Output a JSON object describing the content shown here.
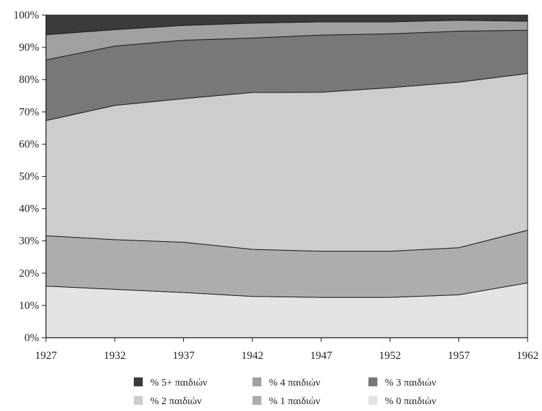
{
  "chart_data": {
    "type": "area",
    "stacked": true,
    "normalized_percent": true,
    "x": [
      1927,
      1932,
      1937,
      1942,
      1947,
      1952,
      1957,
      1962
    ],
    "x_tick_labels": [
      "1927",
      "1932",
      "1937",
      "1942",
      "1947",
      "1952",
      "1957",
      "1962"
    ],
    "y_tick_labels": [
      "0%",
      "10%",
      "20%",
      "30%",
      "40%",
      "50%",
      "60%",
      "70%",
      "80%",
      "90%",
      "100%"
    ],
    "ylim": [
      0,
      100
    ],
    "grid": false,
    "legend_position": "bottom",
    "series": [
      {
        "name": "% 0 παιδιών",
        "color": "#e4e4e4",
        "values": [
          16,
          15,
          14,
          12.8,
          12.5,
          12.5,
          13.3,
          17
        ]
      },
      {
        "name": "% 1 παιδιών",
        "color": "#adadad",
        "values": [
          15.6,
          15.4,
          15.6,
          14.6,
          14.3,
          14.3,
          14.6,
          16.3
        ]
      },
      {
        "name": "% 2 παιδιών",
        "color": "#cdcdcd",
        "values": [
          35.7,
          41.6,
          44.5,
          48.6,
          49.3,
          50.7,
          51.3,
          48.6
        ]
      },
      {
        "name": "% 3 παιδιών",
        "color": "#787878",
        "values": [
          18.8,
          18.4,
          18.1,
          16.9,
          17.7,
          16.7,
          15.8,
          13.4
        ]
      },
      {
        "name": "% 4 παιδιών",
        "color": "#a0a0a0",
        "values": [
          7.8,
          5.1,
          4.6,
          4.6,
          4.1,
          3.7,
          3.4,
          2.8
        ]
      },
      {
        "name": "% 5+ παιδιών",
        "color": "#3b3b3b",
        "values": [
          6.1,
          4.5,
          3.2,
          2.5,
          2.1,
          2.1,
          1.6,
          1.9
        ]
      }
    ],
    "legend_order": [
      "% 5+ παιδιών",
      "% 4 παιδιών",
      "% 3 παιδιών",
      "% 2 παιδιών",
      "% 1 παιδιών",
      "% 0 παιδιών"
    ]
  }
}
